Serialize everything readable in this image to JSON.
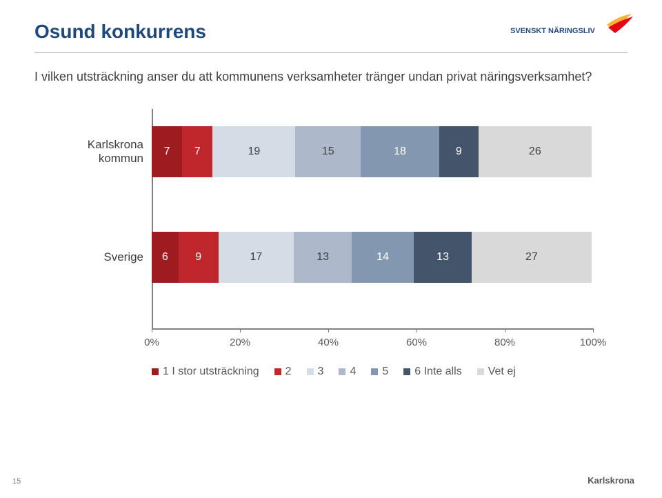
{
  "title": "Osund konkurrens",
  "subtitle": "I vilken utsträckning anser du att kommunens verksamheter tränger undan privat näringsverksamhet?",
  "logo": {
    "text": "SVENSKT NÄRINGSLIV",
    "text_color": "#1f497d",
    "accent_colors": [
      "#f9b233",
      "#e30613"
    ]
  },
  "chart": {
    "type": "stacked-bar-horizontal",
    "x_axis": {
      "min": 0,
      "max": 100,
      "ticks": [
        "0%",
        "20%",
        "40%",
        "60%",
        "80%",
        "100%"
      ],
      "tick_positions_pct": [
        0,
        20,
        40,
        60,
        80,
        100
      ]
    },
    "series_colors": [
      "#9e1c20",
      "#c0272d",
      "#d6dce5",
      "#adb9ca",
      "#8497b0",
      "#44546a",
      "#d9d9d9"
    ],
    "series_text_light": [
      false,
      false,
      true,
      true,
      false,
      false,
      true
    ],
    "rows": [
      {
        "label": "Karlskrona kommun",
        "values": [
          7,
          7,
          19,
          15,
          18,
          9,
          26
        ],
        "top_pct": 8
      },
      {
        "label": "Sverige",
        "values": [
          6,
          9,
          17,
          13,
          14,
          13,
          27
        ],
        "top_pct": 56
      }
    ],
    "legend": [
      {
        "label": "1 I stor utsträckning",
        "color": "#9e1c20"
      },
      {
        "label": "2",
        "color": "#c0272d"
      },
      {
        "label": "3",
        "color": "#d6dce5"
      },
      {
        "label": "4",
        "color": "#adb9ca"
      },
      {
        "label": "5",
        "color": "#8497b0"
      },
      {
        "label": "6 Inte alls",
        "color": "#44546a"
      },
      {
        "label": "Vet ej",
        "color": "#d9d9d9"
      }
    ]
  },
  "page_number": "15",
  "footer_right": "Karlskrona"
}
